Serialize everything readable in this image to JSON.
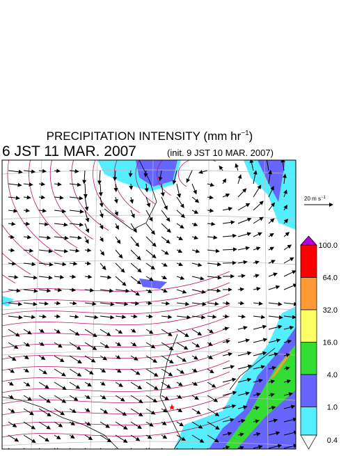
{
  "title": {
    "main": "PRECIPITATION INTENSITY (mm hr",
    "sup": "−1",
    "close": ")"
  },
  "valid_time": "6 JST 11 MAR. 2007",
  "init_time": "(init. 9 JST 10 MAR. 2007)",
  "wind_scale": {
    "main": "20 m s",
    "sup": "−1"
  },
  "colorbar": {
    "levels": [
      {
        "value": 100,
        "label": "100.0"
      },
      {
        "value": 64,
        "label": "64.0"
      },
      {
        "value": 32,
        "label": "32.0"
      },
      {
        "value": 16,
        "label": "16.0"
      },
      {
        "value": 4,
        "label": "4.0"
      },
      {
        "value": 1,
        "label": "1.0"
      },
      {
        "value": 0.4,
        "label": "0.4"
      }
    ],
    "over_color": "#b000e0",
    "colors": [
      "#ff0000",
      "#ff9933",
      "#ffff66",
      "#33dd33",
      "#6666ff",
      "#55eeff"
    ],
    "under_color": "#ffffff"
  }
}
